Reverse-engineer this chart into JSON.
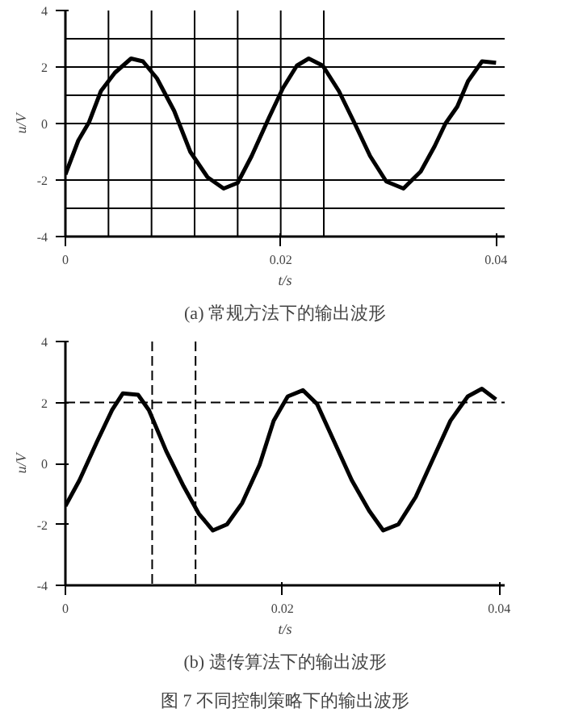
{
  "chart_data": [
    {
      "type": "line",
      "title": "(a) 常规方法下的输出波形",
      "xlabel": "t/s",
      "ylabel": "u/V",
      "xlim": [
        0,
        0.0408
      ],
      "ylim": [
        -4,
        4
      ],
      "xticks": [
        0,
        0.02,
        0.04
      ],
      "yticks": [
        -4,
        -2,
        0,
        2,
        4
      ],
      "grid": false,
      "marker": "none",
      "line_style": "solid",
      "series": [
        {
          "color": "#000000",
          "x": [
            0,
            0.0012,
            0.0022,
            0.0033,
            0.0046,
            0.0061,
            0.0072,
            0.0085,
            0.0101,
            0.0116,
            0.0132,
            0.0147,
            0.016,
            0.0173,
            0.0189,
            0.0202,
            0.0215,
            0.0226,
            0.0239,
            0.0254,
            0.027,
            0.0283,
            0.0298,
            0.0314,
            0.033,
            0.0343,
            0.0353,
            0.0364,
            0.0374,
            0.0387,
            0.04
          ],
          "values": [
            -1.8,
            -0.6,
            0.05,
            1.15,
            1.8,
            2.3,
            2.2,
            1.6,
            0.45,
            -1.0,
            -1.9,
            -2.3,
            -2.1,
            -1.15,
            0.2,
            1.25,
            2.05,
            2.3,
            2.05,
            1.15,
            -0.1,
            -1.15,
            -2.05,
            -2.3,
            -1.7,
            -0.8,
            0,
            0.6,
            1.5,
            2.2,
            2.15
          ]
        }
      ],
      "ref_lines": [
        {
          "axis": "y",
          "value": 3,
          "line_style": "solid"
        },
        {
          "axis": "y",
          "value": 2,
          "line_style": "solid"
        },
        {
          "axis": "y",
          "value": 1,
          "line_style": "solid"
        },
        {
          "axis": "y",
          "value": 0,
          "line_style": "solid"
        },
        {
          "axis": "y",
          "value": -2,
          "line_style": "solid"
        },
        {
          "axis": "y",
          "value": -3,
          "line_style": "solid"
        },
        {
          "axis": "x",
          "value": 0.004,
          "line_style": "solid"
        },
        {
          "axis": "x",
          "value": 0.008,
          "line_style": "solid"
        },
        {
          "axis": "x",
          "value": 0.012,
          "line_style": "solid"
        },
        {
          "axis": "x",
          "value": 0.016,
          "line_style": "solid"
        },
        {
          "axis": "x",
          "value": 0.02,
          "line_style": "solid"
        },
        {
          "axis": "x",
          "value": 0.024,
          "line_style": "solid"
        }
      ]
    },
    {
      "type": "line",
      "title": "(b) 遗传算法下的输出波形",
      "xlabel": "t/s",
      "ylabel": "u/V",
      "xlim": [
        0,
        0.0405
      ],
      "ylim": [
        -4,
        4
      ],
      "xticks": [
        0,
        0.02,
        0.04
      ],
      "yticks": [
        -4,
        -2,
        0,
        2,
        4
      ],
      "grid": false,
      "marker": "none",
      "line_style": "solid",
      "series": [
        {
          "color": "#000000",
          "x": [
            0,
            0.0013,
            0.0029,
            0.0043,
            0.0053,
            0.0067,
            0.0077,
            0.0093,
            0.0109,
            0.0123,
            0.0136,
            0.0149,
            0.0163,
            0.0179,
            0.0192,
            0.0205,
            0.0219,
            0.0232,
            0.0248,
            0.0264,
            0.028,
            0.0293,
            0.0307,
            0.0323,
            0.0339,
            0.0355,
            0.0371,
            0.0384,
            0.0397
          ],
          "values": [
            -1.4,
            -0.55,
            0.7,
            1.75,
            2.3,
            2.25,
            1.75,
            0.4,
            -0.75,
            -1.65,
            -2.2,
            -2.0,
            -1.3,
            -0.05,
            1.4,
            2.2,
            2.4,
            1.95,
            0.7,
            -0.55,
            -1.55,
            -2.2,
            -2.0,
            -1.1,
            0.15,
            1.4,
            2.2,
            2.45,
            2.1
          ]
        }
      ],
      "ref_lines": [
        {
          "axis": "y",
          "value": 2,
          "line_style": "dashed"
        },
        {
          "axis": "x",
          "value": 0.008,
          "line_style": "dashed"
        },
        {
          "axis": "x",
          "value": 0.012,
          "line_style": "dashed"
        }
      ],
      "annotations": [
        "图 7 不同控制策略下的输出波形"
      ]
    }
  ]
}
